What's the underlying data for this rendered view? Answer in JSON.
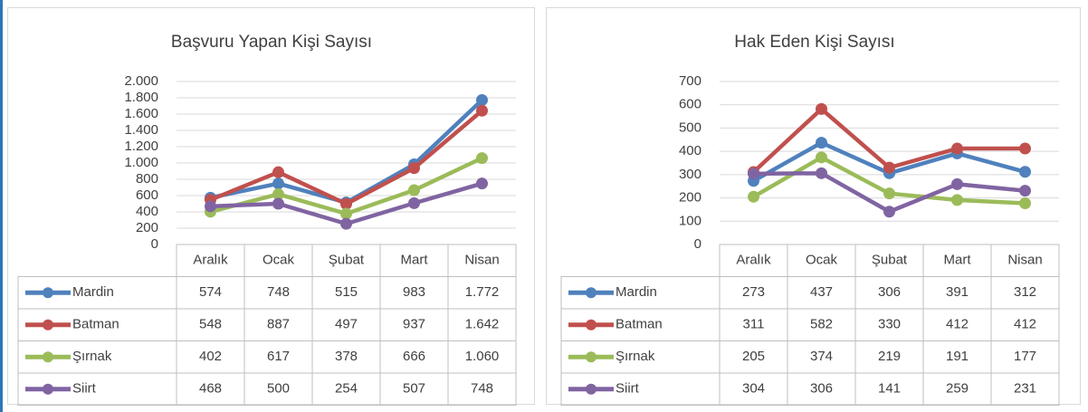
{
  "chart_data": [
    {
      "type": "line",
      "title": "Başvuru Yapan Kişi Sayısı",
      "categories": [
        "Aralık",
        "Ocak",
        "Şubat",
        "Mart",
        "Nisan"
      ],
      "ylim": [
        0,
        2000
      ],
      "yticks": [
        0,
        200,
        400,
        600,
        800,
        {
          "value": 1000,
          "label": "1.000"
        },
        {
          "value": 1200,
          "label": "1.200"
        },
        {
          "value": 1400,
          "label": "1.400"
        },
        {
          "value": 1600,
          "label": "1.600"
        },
        {
          "value": 1800,
          "label": "1.800"
        },
        {
          "value": 2000,
          "label": "2.000"
        }
      ],
      "grid": true,
      "series": [
        {
          "name": "Mardin",
          "color": "#4f81bd",
          "values": [
            574,
            748,
            515,
            983,
            1772
          ],
          "value_labels": [
            "574",
            "748",
            "515",
            "983",
            "1.772"
          ]
        },
        {
          "name": "Batman",
          "color": "#c0504d",
          "values": [
            548,
            887,
            497,
            937,
            1642
          ],
          "value_labels": [
            "548",
            "887",
            "497",
            "937",
            "1.642"
          ]
        },
        {
          "name": "Şırnak",
          "color": "#9bbb59",
          "values": [
            402,
            617,
            378,
            666,
            1060
          ],
          "value_labels": [
            "402",
            "617",
            "378",
            "666",
            "1.060"
          ]
        },
        {
          "name": "Siirt",
          "color": "#8064a2",
          "values": [
            468,
            500,
            254,
            507,
            748
          ]
        }
      ]
    },
    {
      "type": "line",
      "title": "Hak  Eden Kişi Sayısı",
      "categories": [
        "Aralık",
        "Ocak",
        "Şubat",
        "Mart",
        "Nisan"
      ],
      "ylim": [
        0,
        700
      ],
      "yticks": [
        0,
        100,
        200,
        300,
        400,
        500,
        600,
        700
      ],
      "grid": true,
      "series": [
        {
          "name": "Mardin",
          "color": "#4f81bd",
          "values": [
            273,
            437,
            306,
            391,
            312
          ]
        },
        {
          "name": "Batman",
          "color": "#c0504d",
          "values": [
            311,
            582,
            330,
            412,
            412
          ]
        },
        {
          "name": "Şırnak",
          "color": "#9bbb59",
          "values": [
            205,
            374,
            219,
            191,
            177
          ]
        },
        {
          "name": "Siirt",
          "color": "#8064a2",
          "values": [
            304,
            306,
            141,
            259,
            231
          ]
        }
      ]
    }
  ]
}
